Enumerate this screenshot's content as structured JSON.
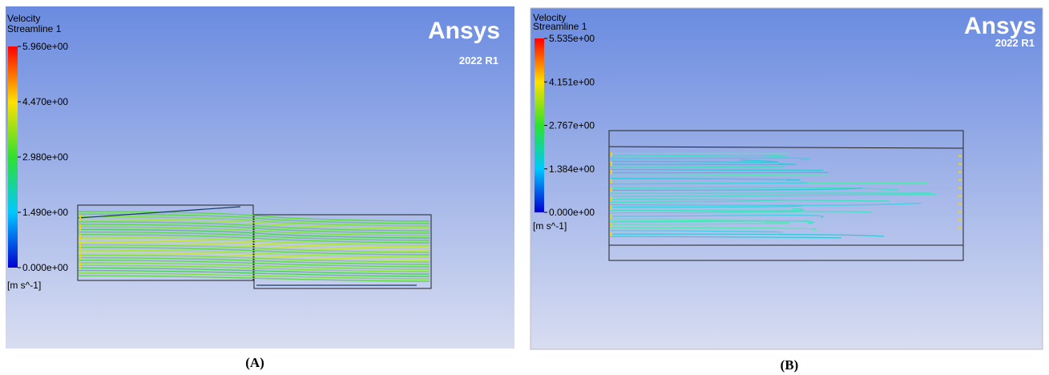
{
  "panels": [
    {
      "label": "(A)",
      "software": "Ansys",
      "version": "2022 R1",
      "legend": {
        "title": "Velocity",
        "subtitle": "Streamline 1",
        "ticks": [
          "5.960e+00",
          "4.470e+00",
          "2.980e+00",
          "1.490e+00",
          "0.000e+00"
        ],
        "unit": "[m s^-1]"
      }
    },
    {
      "label": "(B)",
      "software": "Ansys",
      "version": "2022 R1",
      "legend": {
        "title": "Velocity",
        "subtitle": "Streamline 1",
        "ticks": [
          "5.535e+00",
          "4.151e+00",
          "2.767e+00",
          "1.384e+00",
          "0.000e+00"
        ],
        "unit": "[m s^-1]"
      }
    }
  ]
}
